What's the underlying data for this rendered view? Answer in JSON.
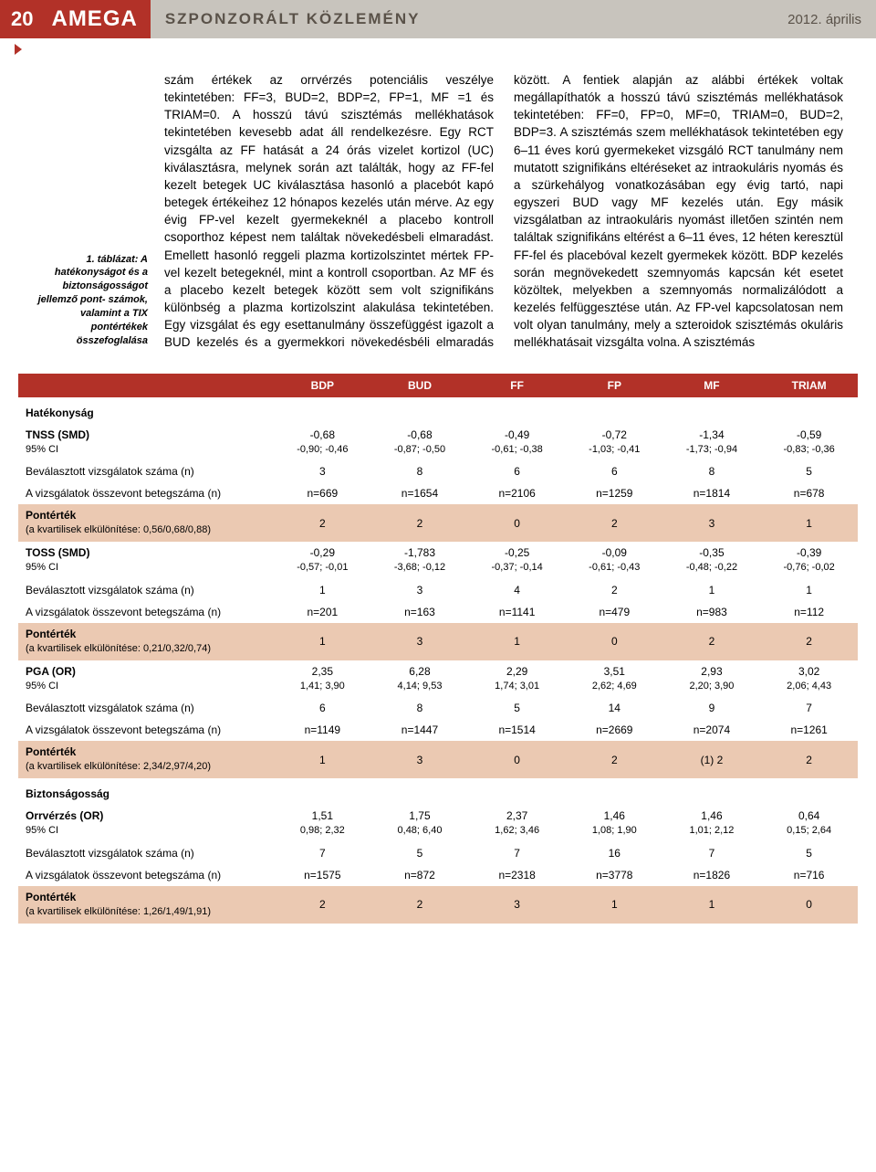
{
  "header": {
    "page_number": "20",
    "brand": "AMEGA",
    "title": "SZPONZORÁLT KÖZLEMÉNY",
    "date": "2012. április"
  },
  "caption": "1. táblázat:\nA hatékonyságot és\na biztonságosságot\njellemző pont-\nszámok, valamint\na TIX pontértékek\nösszefoglalása",
  "body_text": "szám értékek az orrvérzés potenciális veszélye tekintetében: FF=3, BUD=2, BDP=2, FP=1, MF =1 és TRIAM=0. A hosszú távú szisztémás mellékhatások tekintetében kevesebb adat áll rendelkezésre. Egy RCT vizsgálta az FF hatását a 24 órás vizelet kortizol (UC) kiválasztásra, melynek során azt találták, hogy az FF-fel kezelt betegek UC kiválasztása hasonló a placebót kapó betegek értékeihez 12 hónapos kezelés után mérve. Az egy évig FP-vel kezelt gyermekeknél a placebo kontroll csoporthoz képest nem találtak növekedésbeli elmaradást. Emellett hasonló reggeli plazma kortizolszintet mértek FP-vel kezelt betegeknél, mint a kontroll csoportban. Az MF és a placebo kezelt betegek között sem volt szignifikáns különbség a plazma kortizolszint alakulása tekintetében. Egy vizsgálat és egy esettanulmány összefüggést igazolt a BUD kezelés és a gyermekkori növekedésbéli elmaradás között. A fentiek alapján az alábbi értékek voltak megállapíthatók a hosszú távú szisztémás mellékhatások tekintetében: FF=0, FP=0, MF=0, TRIAM=0, BUD=2, BDP=3. A szisztémás szem mellékhatások tekintetében egy 6–11 éves korú gyermekeket vizsgáló RCT tanulmány nem mutatott szignifikáns eltéréseket az intraokuláris nyomás és a szürkehályog vonatkozásában egy évig tartó, napi egyszeri BUD vagy MF kezelés után. Egy másik vizsgálatban az intraokuláris nyomást illetően szintén nem találtak szignifikáns eltérést a 6–11 éves, 12 héten keresztül FF-fel és placebóval kezelt gyermekek között. BDP kezelés során megnövekedett szemnyomás kapcsán két esetet közöltek, melyekben a szemnyomás normalizálódott a kezelés felfüggesztése után. Az FP-vel kapcsolatosan nem volt olyan tanulmány, mely a szteroidok szisztémás okuláris mellékhatásait vizsgálta volna. A szisztémás",
  "table": {
    "columns": [
      "",
      "BDP",
      "BUD",
      "FF",
      "FP",
      "MF",
      "TRIAM"
    ],
    "rows": [
      {
        "type": "section",
        "label": "Hatékonyság"
      },
      {
        "type": "data",
        "label": "TNSS (SMD)",
        "sublabel": "95% CI",
        "v": [
          [
            "-0,68",
            "-0,90; -0,46"
          ],
          [
            "-0,68",
            "-0,87; -0,50"
          ],
          [
            "-0,49",
            "-0,61; -0,38"
          ],
          [
            "-0,72",
            "-1,03; -0,41"
          ],
          [
            "-1,34",
            "-1,73; -0,94"
          ],
          [
            "-0,59",
            "-0,83; -0,36"
          ]
        ]
      },
      {
        "type": "single",
        "label": "Beválasztott vizsgálatok száma (n)",
        "v": [
          "3",
          "8",
          "6",
          "6",
          "8",
          "5"
        ]
      },
      {
        "type": "single",
        "label": "A vizsgálatok összevont betegszáma (n)",
        "v": [
          "n=669",
          "n=1654",
          "n=2106",
          "n=1259",
          "n=1814",
          "n=678"
        ]
      },
      {
        "type": "hi",
        "label": "Pontérték",
        "sublabel": "(a kvartilisek elkülönítése: 0,56/0,68/0,88)",
        "v": [
          "2",
          "2",
          "0",
          "2",
          "3",
          "1"
        ]
      },
      {
        "type": "data",
        "label": "TOSS (SMD)",
        "sublabel": "95% CI",
        "v": [
          [
            "-0,29",
            "-0,57; -0,01"
          ],
          [
            "-1,783",
            "-3,68; -0,12"
          ],
          [
            "-0,25",
            "-0,37; -0,14"
          ],
          [
            "-0,09",
            "-0,61; -0,43"
          ],
          [
            "-0,35",
            "-0,48; -0,22"
          ],
          [
            "-0,39",
            "-0,76; -0,02"
          ]
        ]
      },
      {
        "type": "single",
        "label": "Beválasztott vizsgálatok száma (n)",
        "v": [
          "1",
          "3",
          "4",
          "2",
          "1",
          "1"
        ]
      },
      {
        "type": "single",
        "label": "A vizsgálatok összevont betegszáma (n)",
        "v": [
          "n=201",
          "n=163",
          "n=1141",
          "n=479",
          "n=983",
          "n=112"
        ]
      },
      {
        "type": "hi",
        "label": "Pontérték",
        "sublabel": "(a kvartilisek elkülönítése: 0,21/0,32/0,74)",
        "v": [
          "1",
          "3",
          "1",
          "0",
          "2",
          "2"
        ]
      },
      {
        "type": "data",
        "label": "PGA (OR)",
        "sublabel": "95% CI",
        "v": [
          [
            "2,35",
            "1,41; 3,90"
          ],
          [
            "6,28",
            "4,14; 9,53"
          ],
          [
            "2,29",
            "1,74; 3,01"
          ],
          [
            "3,51",
            "2,62; 4,69"
          ],
          [
            "2,93",
            "2,20; 3,90"
          ],
          [
            "3,02",
            "2,06; 4,43"
          ]
        ]
      },
      {
        "type": "single",
        "label": "Beválasztott vizsgálatok száma (n)",
        "v": [
          "6",
          "8",
          "5",
          "14",
          "9",
          "7"
        ]
      },
      {
        "type": "single",
        "label": "A vizsgálatok összevont betegszáma (n)",
        "v": [
          "n=1149",
          "n=1447",
          "n=1514",
          "n=2669",
          "n=2074",
          "n=1261"
        ]
      },
      {
        "type": "hi",
        "label": "Pontérték",
        "sublabel": "(a kvartilisek elkülönítése: 2,34/2,97/4,20)",
        "v": [
          "1",
          "3",
          "0",
          "2",
          "(1) 2",
          "2"
        ]
      },
      {
        "type": "section",
        "label": "Biztonságosság"
      },
      {
        "type": "data",
        "label": "Orrvérzés (OR)",
        "sublabel": "95% CI",
        "v": [
          [
            "1,51",
            "0,98; 2,32"
          ],
          [
            "1,75",
            "0,48; 6,40"
          ],
          [
            "2,37",
            "1,62; 3,46"
          ],
          [
            "1,46",
            "1,08; 1,90"
          ],
          [
            "1,46",
            "1,01; 2,12"
          ],
          [
            "0,64",
            "0,15; 2,64"
          ]
        ]
      },
      {
        "type": "single",
        "label": "Beválasztott vizsgálatok száma (n)",
        "v": [
          "7",
          "5",
          "7",
          "16",
          "7",
          "5"
        ]
      },
      {
        "type": "single",
        "label": "A vizsgálatok összevont betegszáma (n)",
        "v": [
          "n=1575",
          "n=872",
          "n=2318",
          "n=3778",
          "n=1826",
          "n=716"
        ]
      },
      {
        "type": "hi",
        "label": "Pontérték",
        "sublabel": "(a kvartilisek elkülönítése: 1,26/1,49/1,91)",
        "v": [
          "2",
          "2",
          "3",
          "1",
          "1",
          "0"
        ]
      }
    ],
    "colors": {
      "header_bg": "#b23128",
      "header_fg": "#ffffff",
      "hi_bg": "#ebc9b2"
    }
  }
}
